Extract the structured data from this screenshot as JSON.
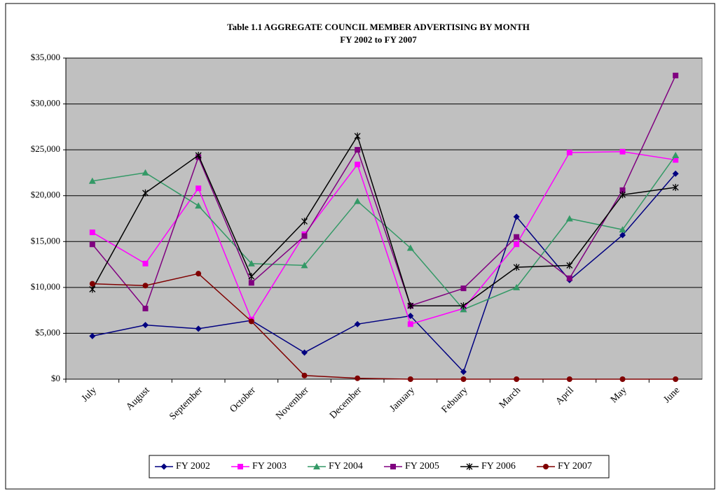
{
  "chart_data": {
    "type": "line",
    "title": "Table 1.1   AGGREGATE COUNCIL MEMBER ADVERTISING BY MONTH",
    "subtitle": "FY 2002 to FY 2007",
    "categories": [
      "July",
      "August",
      "September",
      "October",
      "November",
      "December",
      "January",
      "Febuary",
      "March",
      "April",
      "May",
      "June"
    ],
    "series": [
      {
        "name": "FY 2002",
        "color": "#000080",
        "marker": "diamond",
        "values": [
          4700,
          5900,
          5500,
          6400,
          2900,
          6000,
          6900,
          800,
          17700,
          10800,
          15700,
          22400
        ]
      },
      {
        "name": "FY 2003",
        "color": "#ff00ff",
        "marker": "square",
        "values": [
          16000,
          12600,
          20800,
          6500,
          15800,
          23400,
          6000,
          7700,
          14700,
          24700,
          24800,
          23900
        ]
      },
      {
        "name": "FY 2004",
        "color": "#339966",
        "marker": "triangle",
        "values": [
          21600,
          22500,
          18900,
          12600,
          12400,
          19400,
          14300,
          7600,
          10000,
          17500,
          16300,
          24400
        ]
      },
      {
        "name": "FY 2005",
        "color": "#800080",
        "marker": "square",
        "values": [
          14700,
          7700,
          24200,
          10500,
          15600,
          25000,
          8000,
          9900,
          15500,
          11000,
          20600,
          33100
        ]
      },
      {
        "name": "FY 2006",
        "color": "#000000",
        "marker": "star",
        "values": [
          9800,
          20300,
          24400,
          11200,
          17200,
          26500,
          8000,
          8000,
          12200,
          12400,
          20100,
          20900
        ]
      },
      {
        "name": "FY 2007",
        "color": "#800000",
        "marker": "circle",
        "values": [
          10400,
          10200,
          11500,
          6300,
          400,
          100,
          0,
          0,
          0,
          0,
          0,
          0
        ]
      }
    ],
    "ylim": [
      0,
      35000
    ],
    "yticks": [
      {
        "value": 0,
        "label": "$0"
      },
      {
        "value": 5000,
        "label": "$5,000"
      },
      {
        "value": 10000,
        "label": "$10,000"
      },
      {
        "value": 15000,
        "label": "$15,000"
      },
      {
        "value": 20000,
        "label": "$20,000"
      },
      {
        "value": 25000,
        "label": "$25,000"
      },
      {
        "value": 30000,
        "label": "$30,000"
      },
      {
        "value": 35000,
        "label": "$35,000"
      }
    ],
    "grid": true,
    "legend": "bottom",
    "background": "#c0c0c0"
  }
}
